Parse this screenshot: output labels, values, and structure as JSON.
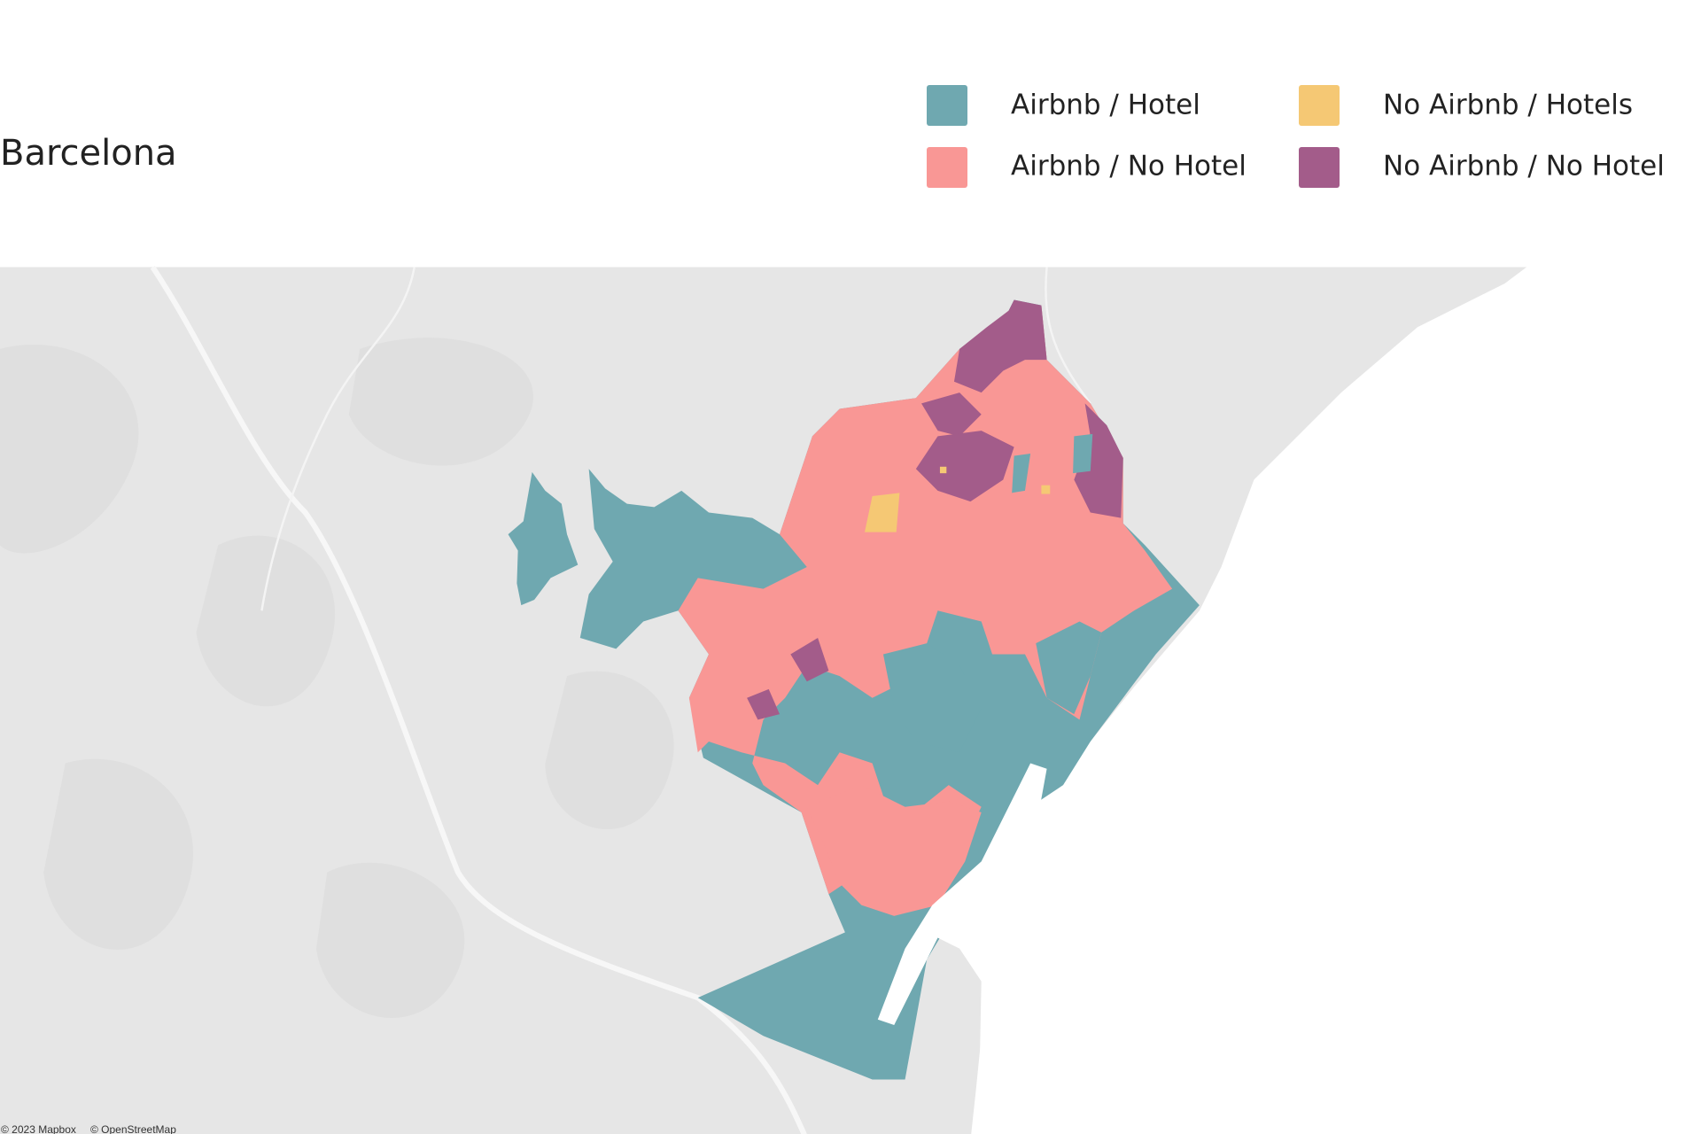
{
  "title": "Barcelona",
  "legend": [
    {
      "label": "Airbnb / Hotel",
      "color": "#6fa8b0"
    },
    {
      "label": "Airbnb / No Hotel",
      "color": "#f99795"
    },
    {
      "label": "No Airbnb / Hotels",
      "color": "#f5c874"
    },
    {
      "label": "No Airbnb / No Hotel",
      "color": "#a35c8a"
    }
  ],
  "attribution": [
    "© 2023 Mapbox",
    "© OpenStreetMap"
  ]
}
